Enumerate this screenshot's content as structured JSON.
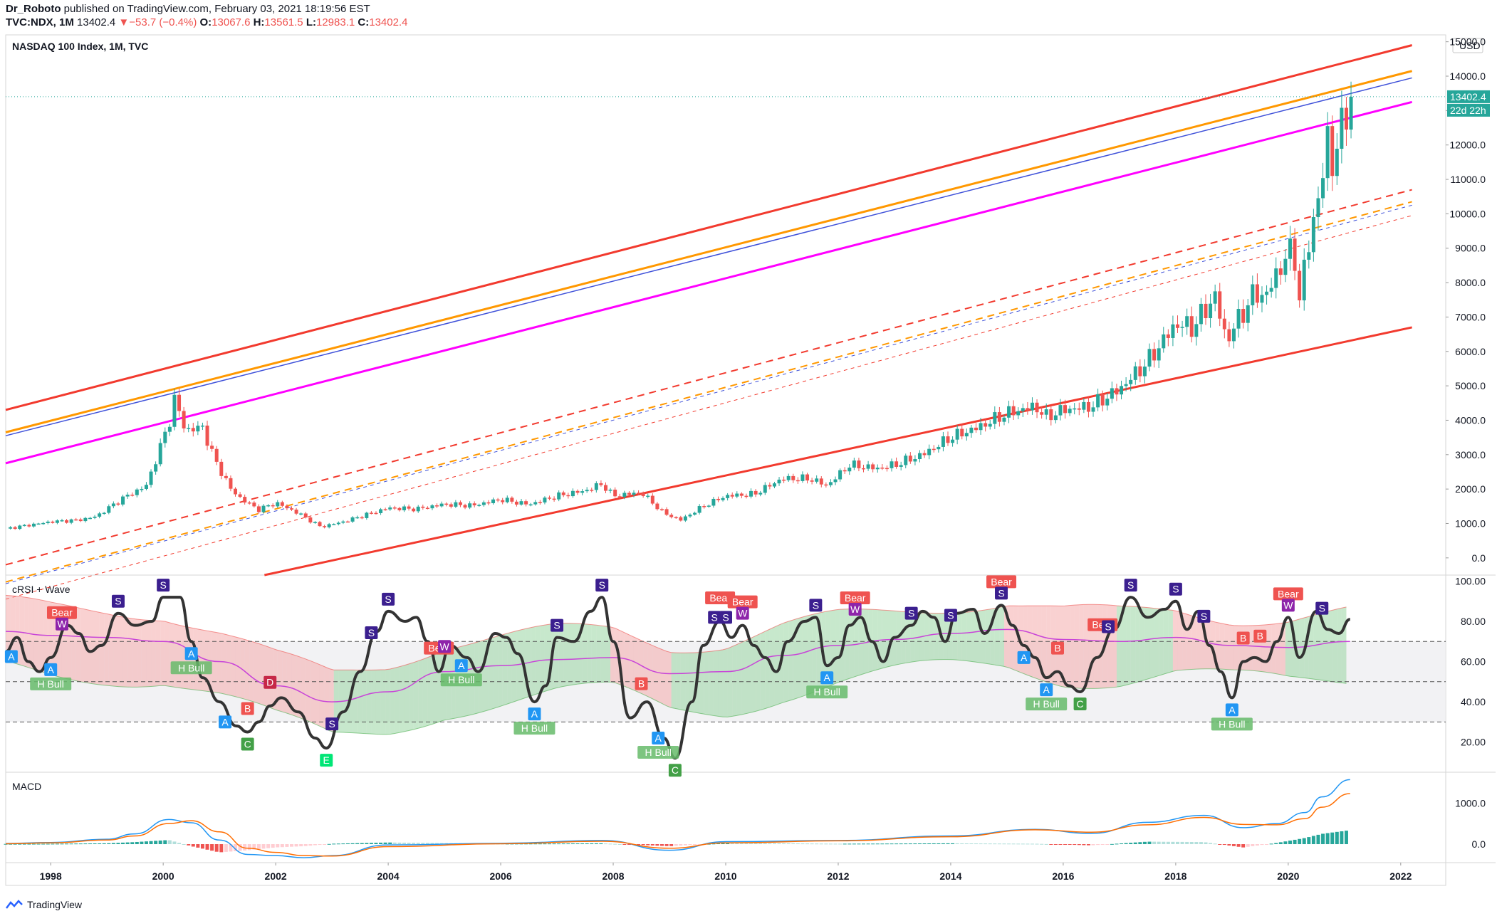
{
  "header": {
    "publisher_prefix": "Dr_Roboto",
    "publisher_suffix": " published on TradingView.com, February 03, 2021 18:19:56 EST",
    "symbol": "TVC:NDX, 1M",
    "last": "13402.4",
    "change": "−53.7 (−0.4%)",
    "o_label": "O:",
    "o_val": "13067.6",
    "h_label": "H:",
    "h_val": "13561.5",
    "l_label": "L:",
    "l_val": "12983.1",
    "c_label": "C:",
    "c_val": "13402.4"
  },
  "main_panel": {
    "title": "NASDAQ 100 Index, 1M, TVC",
    "currency": "USD",
    "price_badge": "13402.4",
    "countdown_badge": "22d 22h"
  },
  "crsi_panel": {
    "title": "cRSI + Wave"
  },
  "macd_panel": {
    "title": "MACD"
  },
  "footer": {
    "brand": "TradingView"
  },
  "colors": {
    "up": "#26a69a",
    "down": "#ef5350",
    "red_line": "#f23a2e",
    "orange_line": "#ff9800",
    "blue_line": "#3f51d9",
    "magenta_line": "#ff00ff",
    "crsi_line": "#333333",
    "ma_line": "#c844d8"
  },
  "chart_data": [
    {
      "type": "candlestick",
      "title": "NASDAQ 100 Index, 1M, TVC",
      "x_ticks": [
        "1998",
        "2000",
        "2002",
        "2004",
        "2006",
        "2008",
        "2010",
        "2012",
        "2014",
        "2016",
        "2018",
        "2020",
        "2022"
      ],
      "y_ticks": [
        "0.0",
        "1000.0",
        "2000.0",
        "3000.0",
        "4000.0",
        "5000.0",
        "6000.0",
        "7000.0",
        "8000.0",
        "9000.0",
        "10000.0",
        "11000.0",
        "12000.0",
        "13000.0",
        "14000.0",
        "15000.0"
      ],
      "ylim": [
        -500,
        15200
      ],
      "xlim": [
        1997.2,
        2022.8
      ],
      "price_path": [
        [
          1997.2,
          850
        ],
        [
          1997.6,
          950
        ],
        [
          1998.0,
          1050
        ],
        [
          1998.5,
          1100
        ],
        [
          1998.8,
          1200
        ],
        [
          1999.3,
          1750
        ],
        [
          1999.7,
          2100
        ],
        [
          1999.9,
          3000
        ],
        [
          2000.1,
          3900
        ],
        [
          2000.2,
          4600
        ],
        [
          2000.4,
          3700
        ],
        [
          2000.7,
          3800
        ],
        [
          2000.9,
          2900
        ],
        [
          2001.2,
          2000
        ],
        [
          2001.4,
          1700
        ],
        [
          2001.7,
          1400
        ],
        [
          2002.0,
          1600
        ],
        [
          2002.4,
          1300
        ],
        [
          2002.8,
          900
        ],
        [
          2003.2,
          1050
        ],
        [
          2003.7,
          1300
        ],
        [
          2004.0,
          1450
        ],
        [
          2004.5,
          1420
        ],
        [
          2005.0,
          1560
        ],
        [
          2005.5,
          1520
        ],
        [
          2006.0,
          1700
        ],
        [
          2006.5,
          1550
        ],
        [
          2007.0,
          1800
        ],
        [
          2007.5,
          1950
        ],
        [
          2007.8,
          2150
        ],
        [
          2008.0,
          1800
        ],
        [
          2008.5,
          1900
        ],
        [
          2008.9,
          1300
        ],
        [
          2009.2,
          1100
        ],
        [
          2009.6,
          1500
        ],
        [
          2010.0,
          1800
        ],
        [
          2010.5,
          1850
        ],
        [
          2011.0,
          2300
        ],
        [
          2011.5,
          2300
        ],
        [
          2011.8,
          2100
        ],
        [
          2012.2,
          2700
        ],
        [
          2012.7,
          2600
        ],
        [
          2013.0,
          2700
        ],
        [
          2013.5,
          3000
        ],
        [
          2014.0,
          3500
        ],
        [
          2014.5,
          3800
        ],
        [
          2015.0,
          4200
        ],
        [
          2015.5,
          4400
        ],
        [
          2015.7,
          4100
        ],
        [
          2016.0,
          4300
        ],
        [
          2016.5,
          4400
        ],
        [
          2017.0,
          4900
        ],
        [
          2017.5,
          5700
        ],
        [
          2018.0,
          6800
        ],
        [
          2018.3,
          6700
        ],
        [
          2018.7,
          7600
        ],
        [
          2018.9,
          6300
        ],
        [
          2019.0,
          6600
        ],
        [
          2019.4,
          7700
        ],
        [
          2019.6,
          7600
        ],
        [
          2019.9,
          8600
        ],
        [
          2020.1,
          9000
        ],
        [
          2020.2,
          7500
        ],
        [
          2020.4,
          9500
        ],
        [
          2020.6,
          10900
        ],
        [
          2020.7,
          12200
        ],
        [
          2020.8,
          11400
        ],
        [
          2020.9,
          12100
        ],
        [
          2021.0,
          12900
        ],
        [
          2021.1,
          13402.4
        ]
      ],
      "trend_lines": [
        {
          "color": "red",
          "width": 3,
          "style": "solid",
          "points": [
            [
              1997.2,
              4300
            ],
            [
              2022.2,
              14900
            ]
          ]
        },
        {
          "color": "orange",
          "width": 3,
          "style": "solid",
          "points": [
            [
              1997.2,
              3650
            ],
            [
              2022.2,
              14150
            ]
          ]
        },
        {
          "color": "blue",
          "width": 1.5,
          "style": "solid",
          "points": [
            [
              1997.2,
              3550
            ],
            [
              2022.2,
              13950
            ]
          ]
        },
        {
          "color": "magenta",
          "width": 3,
          "style": "solid",
          "points": [
            [
              1997.2,
              2750
            ],
            [
              2022.2,
              13250
            ]
          ]
        },
        {
          "color": "red",
          "width": 3,
          "style": "solid",
          "points": [
            [
              2001.8,
              -500
            ],
            [
              2022.2,
              6700
            ]
          ]
        },
        {
          "color": "red",
          "width": 2,
          "style": "dashed",
          "points": [
            [
              1997.2,
              -200
            ],
            [
              2022.2,
              10700
            ]
          ]
        },
        {
          "color": "orange",
          "width": 2,
          "style": "dashed",
          "points": [
            [
              1997.2,
              -700
            ],
            [
              2022.2,
              10350
            ]
          ]
        },
        {
          "color": "blue",
          "width": 1,
          "style": "dashed",
          "points": [
            [
              1997.2,
              -750
            ],
            [
              2022.2,
              10250
            ]
          ]
        },
        {
          "color": "red",
          "width": 1,
          "style": "dashed",
          "points": [
            [
              1997.2,
              -1200
            ],
            [
              2022.2,
              9950
            ]
          ]
        }
      ]
    },
    {
      "type": "line",
      "title": "cRSI + Wave",
      "y_ticks": [
        "20.00",
        "40.00",
        "60.00",
        "80.00",
        "100.00"
      ],
      "ylim": [
        5,
        103
      ],
      "levels": [
        70,
        50,
        30
      ],
      "crsi": [
        [
          1997.2,
          65
        ],
        [
          1997.4,
          72
        ],
        [
          1997.6,
          60
        ],
        [
          1997.8,
          55
        ],
        [
          1998.0,
          62
        ],
        [
          1998.3,
          78
        ],
        [
          1998.5,
          74
        ],
        [
          1998.7,
          65
        ],
        [
          1998.9,
          68
        ],
        [
          1999.2,
          84
        ],
        [
          1999.5,
          78
        ],
        [
          1999.8,
          80
        ],
        [
          2000.0,
          92
        ],
        [
          2000.3,
          92
        ],
        [
          2000.5,
          70
        ],
        [
          2000.7,
          52
        ],
        [
          2001.0,
          40
        ],
        [
          2001.3,
          28
        ],
        [
          2001.5,
          25
        ],
        [
          2001.7,
          30
        ],
        [
          2001.9,
          38
        ],
        [
          2002.1,
          42
        ],
        [
          2002.4,
          35
        ],
        [
          2002.7,
          22
        ],
        [
          2002.9,
          17
        ],
        [
          2003.2,
          35
        ],
        [
          2003.5,
          55
        ],
        [
          2003.8,
          75
        ],
        [
          2004.0,
          85
        ],
        [
          2004.3,
          80
        ],
        [
          2004.5,
          82
        ],
        [
          2004.7,
          70
        ],
        [
          2004.9,
          55
        ],
        [
          2005.1,
          68
        ],
        [
          2005.4,
          62
        ],
        [
          2005.6,
          55
        ],
        [
          2005.9,
          74
        ],
        [
          2006.1,
          72
        ],
        [
          2006.3,
          64
        ],
        [
          2006.6,
          40
        ],
        [
          2006.8,
          48
        ],
        [
          2007.0,
          72
        ],
        [
          2007.3,
          70
        ],
        [
          2007.6,
          85
        ],
        [
          2007.8,
          92
        ],
        [
          2008.0,
          70
        ],
        [
          2008.3,
          32
        ],
        [
          2008.6,
          40
        ],
        [
          2008.9,
          22
        ],
        [
          2009.1,
          12
        ],
        [
          2009.4,
          40
        ],
        [
          2009.6,
          68
        ],
        [
          2009.9,
          80
        ],
        [
          2010.1,
          72
        ],
        [
          2010.3,
          78
        ],
        [
          2010.5,
          68
        ],
        [
          2010.7,
          62
        ],
        [
          2010.9,
          55
        ],
        [
          2011.1,
          70
        ],
        [
          2011.4,
          80
        ],
        [
          2011.6,
          82
        ],
        [
          2011.8,
          58
        ],
        [
          2012.0,
          62
        ],
        [
          2012.2,
          78
        ],
        [
          2012.4,
          82
        ],
        [
          2012.6,
          70
        ],
        [
          2012.8,
          60
        ],
        [
          2013.0,
          72
        ],
        [
          2013.3,
          78
        ],
        [
          2013.5,
          85
        ],
        [
          2013.7,
          82
        ],
        [
          2013.9,
          70
        ],
        [
          2014.1,
          84
        ],
        [
          2014.4,
          86
        ],
        [
          2014.6,
          74
        ],
        [
          2014.9,
          88
        ],
        [
          2015.1,
          78
        ],
        [
          2015.3,
          68
        ],
        [
          2015.5,
          62
        ],
        [
          2015.7,
          52
        ],
        [
          2015.9,
          55
        ],
        [
          2016.1,
          48
        ],
        [
          2016.3,
          45
        ],
        [
          2016.6,
          62
        ],
        [
          2016.9,
          76
        ],
        [
          2017.2,
          92
        ],
        [
          2017.5,
          82
        ],
        [
          2017.8,
          86
        ],
        [
          2018.0,
          90
        ],
        [
          2018.2,
          76
        ],
        [
          2018.4,
          85
        ],
        [
          2018.6,
          68
        ],
        [
          2018.8,
          55
        ],
        [
          2019.0,
          42
        ],
        [
          2019.2,
          60
        ],
        [
          2019.4,
          62
        ],
        [
          2019.6,
          60
        ],
        [
          2019.8,
          70
        ],
        [
          2020.0,
          82
        ],
        [
          2020.2,
          62
        ],
        [
          2020.5,
          85
        ],
        [
          2020.7,
          76
        ],
        [
          2020.9,
          74
        ],
        [
          2021.1,
          81
        ]
      ],
      "ma": [
        [
          1997.2,
          75
        ],
        [
          1998.0,
          73
        ],
        [
          1999.0,
          72
        ],
        [
          2000.0,
          70
        ],
        [
          2001.0,
          60
        ],
        [
          2002.0,
          48
        ],
        [
          2003.0,
          40
        ],
        [
          2004.0,
          45
        ],
        [
          2005.0,
          55
        ],
        [
          2006.0,
          58
        ],
        [
          2007.0,
          61
        ],
        [
          2008.0,
          62
        ],
        [
          2009.0,
          54
        ],
        [
          2010.0,
          55
        ],
        [
          2011.0,
          63
        ],
        [
          2012.0,
          68
        ],
        [
          2013.0,
          71
        ],
        [
          2014.0,
          74
        ],
        [
          2015.0,
          76
        ],
        [
          2016.0,
          71
        ],
        [
          2017.0,
          70
        ],
        [
          2018.0,
          72
        ],
        [
          2019.0,
          68
        ],
        [
          2020.0,
          67
        ],
        [
          2021.1,
          70
        ]
      ],
      "markers": [
        "Bear",
        "W",
        "S",
        "A",
        "H Bull",
        "B",
        "D",
        "C",
        "E",
        "Bear",
        "W",
        "B",
        "S"
      ]
    },
    {
      "type": "line",
      "title": "MACD",
      "y_ticks": [
        "0.0",
        "1000.0"
      ],
      "ylim": [
        -450,
        1750
      ],
      "macd": [
        [
          1997.2,
          15
        ],
        [
          1998.0,
          40
        ],
        [
          1999.0,
          120
        ],
        [
          1999.5,
          250
        ],
        [
          2000.1,
          600
        ],
        [
          2000.5,
          520
        ],
        [
          2001.0,
          100
        ],
        [
          2001.5,
          -250
        ],
        [
          2002.0,
          -280
        ],
        [
          2002.5,
          -330
        ],
        [
          2003.0,
          -280
        ],
        [
          2004.0,
          -20
        ],
        [
          2006.0,
          20
        ],
        [
          2007.8,
          90
        ],
        [
          2009.0,
          -150
        ],
        [
          2010.0,
          60
        ],
        [
          2012.0,
          90
        ],
        [
          2014.0,
          200
        ],
        [
          2015.5,
          360
        ],
        [
          2016.5,
          260
        ],
        [
          2017.5,
          530
        ],
        [
          2018.5,
          700
        ],
        [
          2019.2,
          400
        ],
        [
          2019.8,
          500
        ],
        [
          2020.3,
          770
        ],
        [
          2020.6,
          1150
        ],
        [
          2021.1,
          1570
        ]
      ],
      "signal": [
        [
          1997.2,
          10
        ],
        [
          1998.0,
          30
        ],
        [
          1999.0,
          100
        ],
        [
          1999.5,
          200
        ],
        [
          2000.1,
          500
        ],
        [
          2000.5,
          570
        ],
        [
          2001.0,
          300
        ],
        [
          2001.5,
          -100
        ],
        [
          2002.0,
          -200
        ],
        [
          2002.5,
          -280
        ],
        [
          2003.0,
          -290
        ],
        [
          2004.0,
          -60
        ],
        [
          2006.0,
          10
        ],
        [
          2007.8,
          70
        ],
        [
          2009.0,
          -100
        ],
        [
          2010.0,
          30
        ],
        [
          2012.0,
          80
        ],
        [
          2014.0,
          180
        ],
        [
          2015.5,
          350
        ],
        [
          2016.5,
          290
        ],
        [
          2017.5,
          470
        ],
        [
          2018.5,
          650
        ],
        [
          2019.2,
          480
        ],
        [
          2019.8,
          470
        ],
        [
          2020.3,
          620
        ],
        [
          2020.6,
          900
        ],
        [
          2021.1,
          1230
        ]
      ]
    }
  ]
}
